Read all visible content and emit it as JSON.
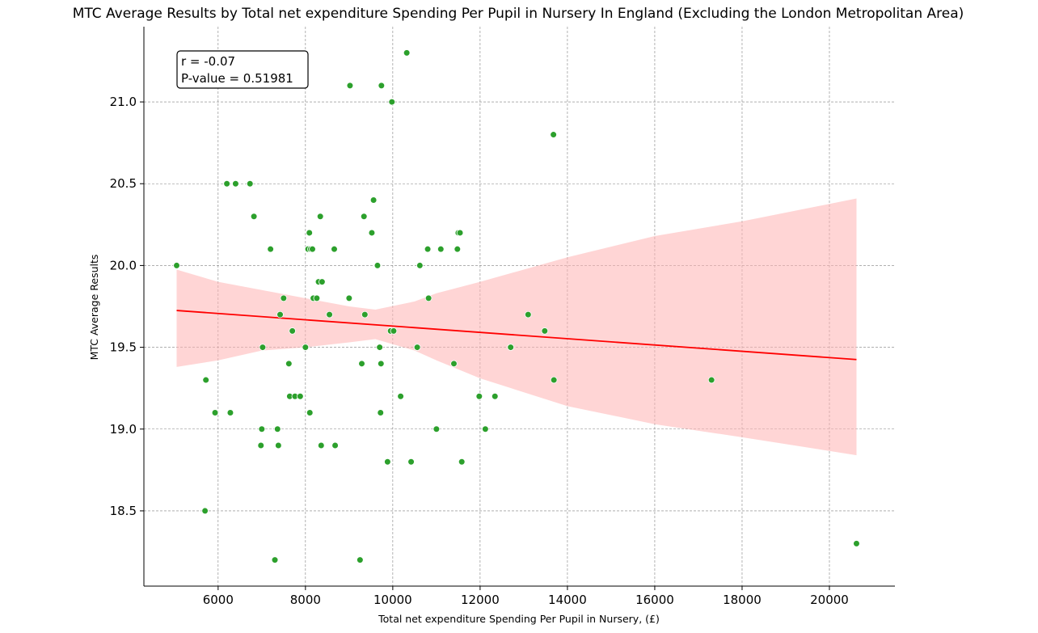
{
  "chart_data": {
    "type": "scatter",
    "title": "MTC Average Results by Total net expenditure Spending Per Pupil in Nursery In England (Excluding the London Metropolitan Area)",
    "xlabel": "Total net expenditure Spending Per Pupil in Nursery, (£)",
    "ylabel": "MTC Average Results",
    "xlim": [
      4300,
      21500
    ],
    "ylim": [
      18.04,
      21.46
    ],
    "xticks": [
      6000,
      8000,
      10000,
      12000,
      14000,
      16000,
      18000,
      20000
    ],
    "xtick_labels": [
      "6000",
      "8000",
      "10000",
      "12000",
      "14000",
      "16000",
      "18000",
      "20000"
    ],
    "yticks": [
      18.5,
      19.0,
      19.5,
      20.0,
      20.5,
      21.0
    ],
    "ytick_labels": [
      "18.5",
      "19.0",
      "19.5",
      "20.0",
      "20.5",
      "21.0"
    ],
    "grid": true,
    "annotation": {
      "lines": [
        "r = -0.07",
        "P-value = 0.51981"
      ],
      "position": "top-left"
    },
    "point_color": "#2ca02c",
    "line_color": "#ff0000",
    "band_color": "#ffb3b3",
    "regression": {
      "x": [
        5050,
        20620
      ],
      "y": [
        19.725,
        19.425
      ]
    },
    "confidence_band": {
      "x": [
        5050,
        6000,
        7000,
        8000,
        9000,
        9600,
        10500,
        11000,
        12000,
        14000,
        16000,
        18000,
        20620
      ],
      "upper": [
        19.975,
        19.9,
        19.85,
        19.8,
        19.75,
        19.73,
        19.78,
        19.83,
        19.9,
        20.05,
        20.18,
        20.27,
        20.41
      ],
      "lower": [
        19.38,
        19.42,
        19.48,
        19.5,
        19.53,
        19.55,
        19.48,
        19.42,
        19.31,
        19.14,
        19.03,
        18.95,
        18.84
      ]
    },
    "points": [
      [
        5050,
        20.0
      ],
      [
        5720,
        19.3
      ],
      [
        5700,
        18.5
      ],
      [
        5930,
        19.1
      ],
      [
        6200,
        20.5
      ],
      [
        6280,
        19.1
      ],
      [
        6400,
        20.5
      ],
      [
        6730,
        20.5
      ],
      [
        6820,
        20.3
      ],
      [
        6980,
        18.9
      ],
      [
        7000,
        19.0
      ],
      [
        7020,
        19.5
      ],
      [
        7200,
        20.1
      ],
      [
        7300,
        18.2
      ],
      [
        7360,
        19.0
      ],
      [
        7380,
        18.9
      ],
      [
        7420,
        19.7
      ],
      [
        7500,
        19.8
      ],
      [
        7620,
        19.4
      ],
      [
        7640,
        19.2
      ],
      [
        7700,
        19.6
      ],
      [
        7760,
        19.2
      ],
      [
        7880,
        19.2
      ],
      [
        8000,
        19.5
      ],
      [
        8060,
        20.1
      ],
      [
        8090,
        20.2
      ],
      [
        8100,
        19.1
      ],
      [
        8120,
        20.1
      ],
      [
        8160,
        20.1
      ],
      [
        8180,
        19.8
      ],
      [
        8260,
        19.8
      ],
      [
        8300,
        19.9
      ],
      [
        8340,
        20.3
      ],
      [
        8360,
        18.9
      ],
      [
        8380,
        19.9
      ],
      [
        8550,
        19.7
      ],
      [
        8660,
        20.1
      ],
      [
        8680,
        18.9
      ],
      [
        9000,
        19.8
      ],
      [
        9020,
        21.1
      ],
      [
        9250,
        18.2
      ],
      [
        9290,
        19.4
      ],
      [
        9340,
        20.3
      ],
      [
        9360,
        19.7
      ],
      [
        9520,
        20.2
      ],
      [
        9560,
        20.4
      ],
      [
        9650,
        20.0
      ],
      [
        9700,
        19.5
      ],
      [
        9720,
        19.1
      ],
      [
        9730,
        19.4
      ],
      [
        9740,
        21.1
      ],
      [
        9880,
        18.8
      ],
      [
        9950,
        19.6
      ],
      [
        9980,
        21.0
      ],
      [
        10020,
        19.6
      ],
      [
        10180,
        19.2
      ],
      [
        10320,
        21.3
      ],
      [
        10420,
        18.8
      ],
      [
        10560,
        19.5
      ],
      [
        10620,
        20.0
      ],
      [
        10800,
        20.1
      ],
      [
        10820,
        19.8
      ],
      [
        11000,
        19.0
      ],
      [
        11100,
        20.1
      ],
      [
        11400,
        19.4
      ],
      [
        11480,
        20.1
      ],
      [
        11500,
        20.2
      ],
      [
        11540,
        20.2
      ],
      [
        11580,
        18.8
      ],
      [
        11980,
        19.2
      ],
      [
        12120,
        19.0
      ],
      [
        12340,
        19.2
      ],
      [
        12700,
        19.5
      ],
      [
        13100,
        19.7
      ],
      [
        13480,
        19.6
      ],
      [
        13680,
        20.8
      ],
      [
        13690,
        19.3
      ],
      [
        17300,
        19.3
      ],
      [
        20620,
        18.3
      ]
    ]
  }
}
